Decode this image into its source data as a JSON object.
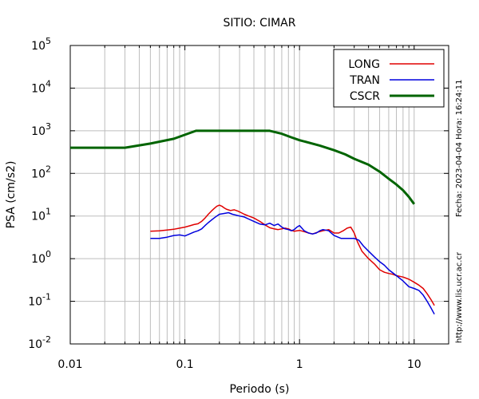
{
  "chart_data": {
    "type": "line",
    "title": "SITIO: CIMAR",
    "xlabel": "Periodo (s)",
    "ylabel": "PSA (cm/s2)",
    "xscale": "log",
    "yscale": "log",
    "xlim": [
      0.01,
      20
    ],
    "ylim": [
      0.01,
      100000
    ],
    "xticks": [
      {
        "value": 0.01,
        "label": "0.01"
      },
      {
        "value": 0.1,
        "label": "0.1"
      },
      {
        "value": 1,
        "label": "1"
      },
      {
        "value": 10,
        "label": "10"
      }
    ],
    "yticks": [
      {
        "value": 0.01,
        "base": "10",
        "exp": "-2"
      },
      {
        "value": 0.1,
        "base": "10",
        "exp": "-1"
      },
      {
        "value": 1,
        "base": "10",
        "exp": "0"
      },
      {
        "value": 10,
        "base": "10",
        "exp": "1"
      },
      {
        "value": 100,
        "base": "10",
        "exp": "2"
      },
      {
        "value": 1000,
        "base": "10",
        "exp": "3"
      },
      {
        "value": 10000,
        "base": "10",
        "exp": "4"
      },
      {
        "value": 100000,
        "base": "10",
        "exp": "5"
      }
    ],
    "grid": "vertical-minor-and-major, horizontal-major",
    "legend_position": "top-right",
    "series": [
      {
        "name": "LONG",
        "color": "#e00000",
        "points": [
          [
            0.05,
            4.4
          ],
          [
            0.06,
            4.5
          ],
          [
            0.07,
            4.7
          ],
          [
            0.08,
            4.9
          ],
          [
            0.09,
            5.2
          ],
          [
            0.1,
            5.5
          ],
          [
            0.11,
            5.9
          ],
          [
            0.12,
            6.3
          ],
          [
            0.13,
            6.6
          ],
          [
            0.14,
            7.5
          ],
          [
            0.15,
            9.0
          ],
          [
            0.16,
            11.0
          ],
          [
            0.17,
            13.0
          ],
          [
            0.18,
            15.0
          ],
          [
            0.19,
            17.0
          ],
          [
            0.2,
            18.0
          ],
          [
            0.21,
            17.0
          ],
          [
            0.22,
            15.5
          ],
          [
            0.23,
            14.5
          ],
          [
            0.25,
            13.5
          ],
          [
            0.27,
            14.0
          ],
          [
            0.29,
            13.0
          ],
          [
            0.31,
            12.0
          ],
          [
            0.33,
            11.0
          ],
          [
            0.36,
            10.0
          ],
          [
            0.4,
            9.0
          ],
          [
            0.45,
            7.5
          ],
          [
            0.5,
            6.2
          ],
          [
            0.55,
            5.3
          ],
          [
            0.6,
            5.0
          ],
          [
            0.65,
            4.8
          ],
          [
            0.7,
            5.0
          ],
          [
            0.75,
            5.2
          ],
          [
            0.8,
            5.0
          ],
          [
            0.85,
            4.6
          ],
          [
            0.9,
            4.4
          ],
          [
            1.0,
            4.6
          ],
          [
            1.1,
            4.3
          ],
          [
            1.2,
            4.0
          ],
          [
            1.3,
            3.8
          ],
          [
            1.45,
            4.2
          ],
          [
            1.6,
            4.5
          ],
          [
            1.8,
            4.8
          ],
          [
            2.0,
            4.0
          ],
          [
            2.2,
            4.0
          ],
          [
            2.4,
            4.5
          ],
          [
            2.6,
            5.2
          ],
          [
            2.8,
            5.5
          ],
          [
            3.0,
            4.0
          ],
          [
            3.2,
            2.5
          ],
          [
            3.5,
            1.5
          ],
          [
            4.0,
            1.0
          ],
          [
            4.5,
            0.75
          ],
          [
            5.0,
            0.55
          ],
          [
            5.5,
            0.48
          ],
          [
            6.0,
            0.45
          ],
          [
            6.5,
            0.43
          ],
          [
            7.0,
            0.4
          ],
          [
            8.0,
            0.37
          ],
          [
            9.0,
            0.33
          ],
          [
            10.0,
            0.28
          ],
          [
            11.0,
            0.24
          ],
          [
            12.0,
            0.2
          ],
          [
            13.0,
            0.15
          ],
          [
            14.0,
            0.11
          ],
          [
            15.0,
            0.08
          ]
        ]
      },
      {
        "name": "TRAN",
        "color": "#0000dd",
        "points": [
          [
            0.05,
            3.0
          ],
          [
            0.06,
            3.0
          ],
          [
            0.07,
            3.2
          ],
          [
            0.08,
            3.5
          ],
          [
            0.09,
            3.6
          ],
          [
            0.1,
            3.4
          ],
          [
            0.11,
            3.8
          ],
          [
            0.12,
            4.2
          ],
          [
            0.13,
            4.5
          ],
          [
            0.14,
            5.0
          ],
          [
            0.15,
            6.0
          ],
          [
            0.16,
            7.0
          ],
          [
            0.17,
            8.0
          ],
          [
            0.18,
            9.0
          ],
          [
            0.19,
            10.0
          ],
          [
            0.2,
            11.0
          ],
          [
            0.22,
            11.5
          ],
          [
            0.24,
            12.0
          ],
          [
            0.26,
            11.0
          ],
          [
            0.28,
            10.5
          ],
          [
            0.3,
            10.0
          ],
          [
            0.33,
            9.5
          ],
          [
            0.36,
            8.5
          ],
          [
            0.4,
            7.5
          ],
          [
            0.45,
            6.5
          ],
          [
            0.5,
            6.2
          ],
          [
            0.55,
            6.8
          ],
          [
            0.6,
            6.0
          ],
          [
            0.65,
            6.5
          ],
          [
            0.7,
            5.5
          ],
          [
            0.75,
            5.0
          ],
          [
            0.8,
            4.8
          ],
          [
            0.85,
            4.5
          ],
          [
            0.9,
            4.8
          ],
          [
            0.95,
            5.5
          ],
          [
            1.0,
            6.0
          ],
          [
            1.1,
            4.5
          ],
          [
            1.2,
            4.0
          ],
          [
            1.3,
            3.8
          ],
          [
            1.4,
            4.0
          ],
          [
            1.5,
            4.5
          ],
          [
            1.6,
            4.8
          ],
          [
            1.8,
            4.5
          ],
          [
            2.0,
            3.5
          ],
          [
            2.3,
            3.0
          ],
          [
            2.7,
            3.0
          ],
          [
            3.0,
            3.0
          ],
          [
            3.3,
            2.7
          ],
          [
            3.6,
            2.0
          ],
          [
            4.0,
            1.5
          ],
          [
            4.5,
            1.1
          ],
          [
            5.0,
            0.85
          ],
          [
            5.5,
            0.7
          ],
          [
            6.0,
            0.55
          ],
          [
            7.0,
            0.4
          ],
          [
            8.0,
            0.3
          ],
          [
            9.0,
            0.22
          ],
          [
            10.0,
            0.2
          ],
          [
            11.0,
            0.18
          ],
          [
            12.0,
            0.14
          ],
          [
            13.0,
            0.1
          ],
          [
            14.0,
            0.07
          ],
          [
            15.0,
            0.05
          ]
        ]
      },
      {
        "name": "CSCR",
        "color": "#006400",
        "points": [
          [
            0.01,
            400
          ],
          [
            0.03,
            400
          ],
          [
            0.05,
            500
          ],
          [
            0.08,
            650
          ],
          [
            0.125,
            1000
          ],
          [
            0.55,
            1000
          ],
          [
            0.7,
            850
          ],
          [
            0.85,
            700
          ],
          [
            1.0,
            600
          ],
          [
            1.5,
            450
          ],
          [
            2.0,
            350
          ],
          [
            2.5,
            280
          ],
          [
            3.0,
            220
          ],
          [
            4.0,
            160
          ],
          [
            5.0,
            110
          ],
          [
            6.0,
            75
          ],
          [
            7.0,
            55
          ],
          [
            8.0,
            40
          ],
          [
            9.0,
            28
          ],
          [
            10.0,
            19
          ]
        ]
      }
    ]
  },
  "side_text": {
    "timestamp": "Fecha: 2023-04-04  Hora: 16:24:11",
    "url": "http://www.lis.ucr.ac.cr"
  }
}
